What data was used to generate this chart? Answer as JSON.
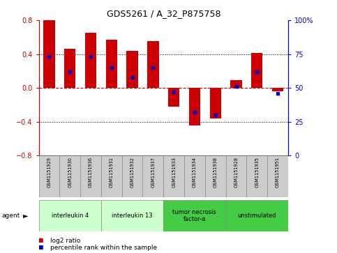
{
  "title": "GDS5261 / A_32_P875758",
  "samples": [
    "GSM1151929",
    "GSM1151930",
    "GSM1151936",
    "GSM1151931",
    "GSM1151932",
    "GSM1151937",
    "GSM1151933",
    "GSM1151934",
    "GSM1151938",
    "GSM1151928",
    "GSM1151935",
    "GSM1151951"
  ],
  "log2_ratio": [
    0.8,
    0.46,
    0.65,
    0.57,
    0.44,
    0.55,
    -0.22,
    -0.44,
    -0.36,
    0.09,
    0.41,
    -0.04
  ],
  "percentile_rank": [
    73,
    62,
    73,
    65,
    58,
    65,
    47,
    32,
    30,
    51,
    62,
    46
  ],
  "agents": [
    {
      "label": "interleukin 4",
      "start": 0,
      "end": 3,
      "color": "#ccffcc"
    },
    {
      "label": "interleukin 13",
      "start": 3,
      "end": 6,
      "color": "#ccffcc"
    },
    {
      "label": "tumor necrosis\nfactor-α",
      "start": 6,
      "end": 9,
      "color": "#44cc44"
    },
    {
      "label": "unstimulated",
      "start": 9,
      "end": 12,
      "color": "#44cc44"
    }
  ],
  "ylim": [
    -0.8,
    0.8
  ],
  "y2lim": [
    0,
    100
  ],
  "yticks": [
    -0.8,
    -0.4,
    0,
    0.4,
    0.8
  ],
  "y2ticks": [
    0,
    25,
    50,
    75,
    100
  ],
  "hlines_dotted": [
    -0.4,
    0.4
  ],
  "hline_dashed": 0.0,
  "bar_color": "#cc0000",
  "dot_color": "#0000cc",
  "bar_width": 0.55,
  "sample_box_color": "#cccccc",
  "agent_label": "agent"
}
